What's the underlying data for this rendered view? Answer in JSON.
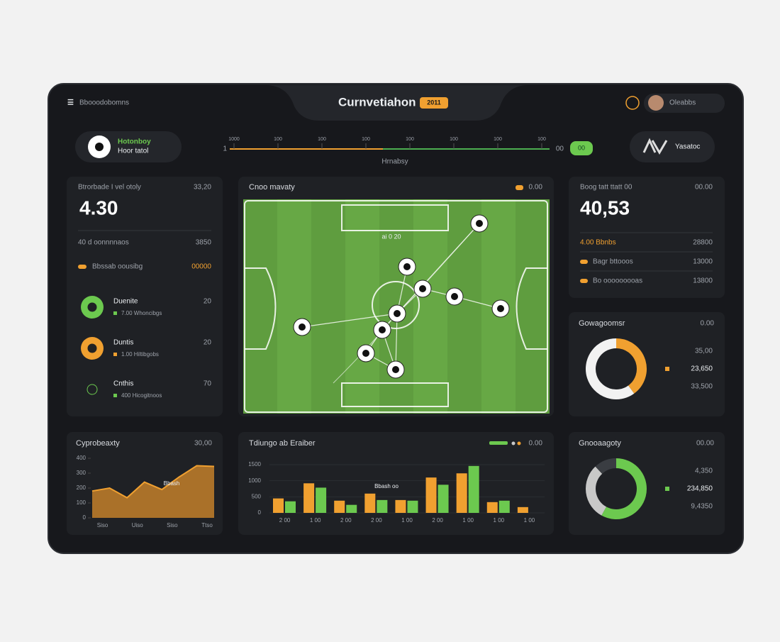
{
  "header": {
    "brand": "Bbooodobomns",
    "title": "Curnvetiahon",
    "badge": "2011",
    "user": "Oleabbs"
  },
  "match": {
    "team": "Hotonboy",
    "subtitle": "Hoor tatol",
    "timeline_label": "Hrnabsy",
    "timeline_ticks": [
      "1000",
      "100",
      "100",
      "100",
      "100",
      "100",
      "100",
      "100"
    ],
    "score_start": "1",
    "score_end": "00",
    "badge": "00",
    "away": "Yasatoc"
  },
  "left_panel": {
    "title": "Btrorbade I vel otoly",
    "tag": "33,20",
    "big": "4.30",
    "rows": [
      {
        "label": "40 d oonnnnaos",
        "value": "3850"
      },
      {
        "label": "Bbssab oousibg",
        "value": "00000"
      }
    ],
    "players": [
      {
        "name": "Duenite",
        "detail": "7.00 Whoncibgs",
        "value": "20"
      },
      {
        "name": "Duntis",
        "detail": "1.00 Hiltibgobs",
        "value": "20"
      },
      {
        "name": "Cnthis",
        "detail": "400 Hicogitnoos",
        "value": "70"
      }
    ]
  },
  "pitch": {
    "title": "Cnoo mavaty",
    "legend": "0.00",
    "label": "ai 0 20"
  },
  "right_panel": {
    "title": "Boog tatt ttatt 00",
    "tag": "00.00",
    "big": "40,53",
    "rows": [
      {
        "label": "4.00 Bbnbs",
        "value": "28800"
      },
      {
        "label": "Bagr bttooos",
        "value": "13000"
      },
      {
        "label": "Bo ooooooooas",
        "value": "13800"
      }
    ]
  },
  "chart_data": [
    {
      "type": "area",
      "title": "Cyprobeaxty",
      "tag": "30,00",
      "annotation": "Bbash",
      "color": "#d98c2b",
      "categories": [
        null,
        "Siso",
        null,
        "Uiso",
        null,
        "Siso",
        null,
        "Ttso"
      ],
      "values": [
        180,
        200,
        135,
        240,
        190,
        275,
        350,
        345
      ],
      "ylim": [
        0,
        400
      ],
      "yticks": [
        0,
        100,
        200,
        300,
        400
      ]
    },
    {
      "type": "bar",
      "title": "Tdiungo ab Eraiber",
      "legend": "0.00",
      "annotation": "Bbash oo",
      "categories": [
        "2 00",
        "1 00",
        "2 00",
        "2 00",
        "1 00",
        "2 00",
        "1 00",
        "1 00",
        "1 00"
      ],
      "series": [
        {
          "color": "#f0a030",
          "values": [
            450,
            920,
            380,
            600,
            400,
            1100,
            1230,
            335,
            180
          ]
        },
        {
          "color": "#6cc94f",
          "values": [
            360,
            785,
            250,
            400,
            380,
            875,
            1460,
            380,
            null
          ]
        }
      ],
      "ylim": [
        0,
        1500
      ],
      "yticks": [
        0,
        500,
        1000,
        1500
      ]
    },
    {
      "type": "donut",
      "title": "Gowagoomsr",
      "tag": "0.00",
      "values": [
        40,
        60
      ],
      "colors": [
        "#f0a030",
        "#f2f2f2"
      ],
      "legend_values": [
        "35,00",
        "23,650",
        "33,500"
      ]
    },
    {
      "type": "donut",
      "title": "Gnooaagoty",
      "tag": "00.00",
      "values": [
        58,
        30,
        12
      ],
      "colors": [
        "#6cc94f",
        "#c8c8c8",
        "#3a3d42"
      ],
      "legend_values": [
        "4,350",
        "234,850",
        "9,4350"
      ]
    }
  ]
}
